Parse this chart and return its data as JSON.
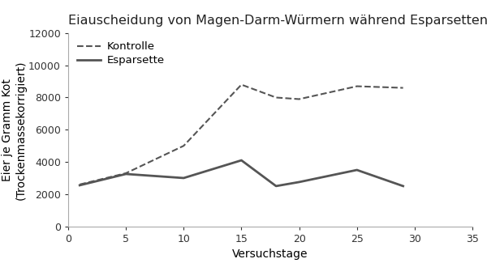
{
  "title": "Eiauscheidung von Magen-Darm-Würmern während Esparsettenfütterung",
  "xlabel": "Versuchstage",
  "ylabel": "Eier je Gramm Kot\n(Trockenmassekorrigiert)",
  "kontrolle_x": [
    1,
    5,
    10,
    15,
    18,
    20,
    25,
    29
  ],
  "kontrolle_y": [
    2600,
    3300,
    5000,
    8800,
    8000,
    7900,
    8700,
    8600
  ],
  "esparsette_x": [
    1,
    5,
    10,
    15,
    18,
    20,
    25,
    29
  ],
  "esparsette_y": [
    2550,
    3250,
    3000,
    4100,
    2500,
    2750,
    3500,
    2500
  ],
  "xlim": [
    0,
    35
  ],
  "ylim": [
    0,
    12000
  ],
  "yticks": [
    0,
    2000,
    4000,
    6000,
    8000,
    10000,
    12000
  ],
  "xticks": [
    0,
    5,
    10,
    15,
    20,
    25,
    30,
    35
  ],
  "legend_labels": [
    "Kontrolle",
    "Esparsette"
  ],
  "line_color": "#555555",
  "background_color": "#ffffff",
  "title_fontsize": 11.5,
  "label_fontsize": 10,
  "tick_fontsize": 9,
  "legend_fontsize": 9.5,
  "spine_color": "#aaaaaa"
}
